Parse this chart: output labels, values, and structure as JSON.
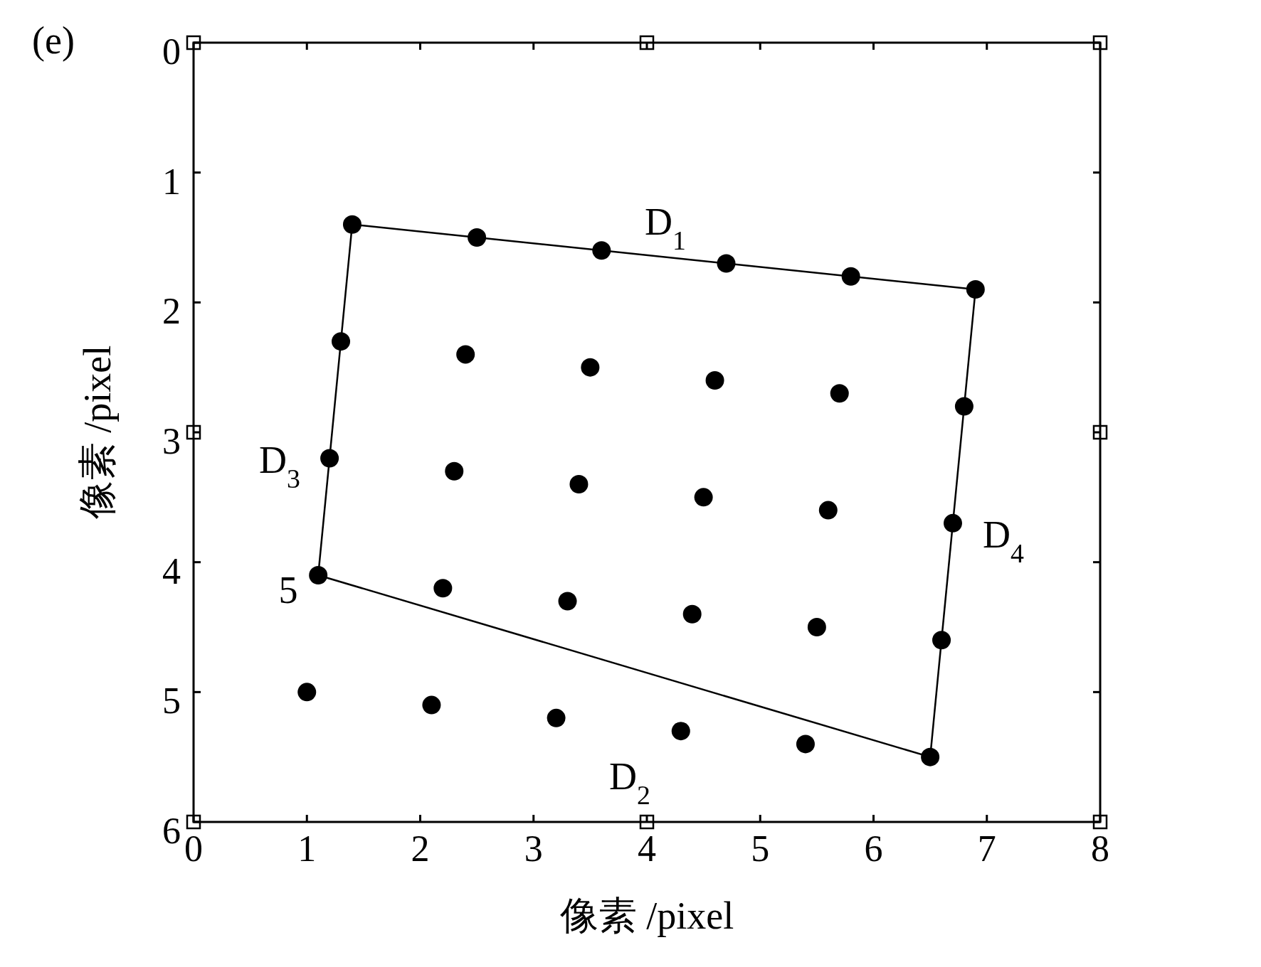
{
  "chart_data": {
    "type": "scatter",
    "xlabel": "像素 /pixel",
    "ylabel": "像素 /pixel",
    "xlim": [
      0,
      8
    ],
    "ylim": [
      6,
      0
    ],
    "xticks": [
      0,
      1,
      2,
      3,
      4,
      5,
      6,
      7,
      8
    ],
    "yticks": [
      0,
      1,
      2,
      3,
      4,
      5,
      6
    ],
    "grid": false,
    "series": [
      {
        "type": "line",
        "marker": "none",
        "line_style": "solid",
        "color": "#000000",
        "x": [
          1.4,
          6.9
        ],
        "values": [
          1.4,
          1.9
        ]
      },
      {
        "type": "line",
        "marker": "none",
        "line_style": "solid",
        "color": "#000000",
        "x": [
          6.9,
          6.5
        ],
        "values": [
          1.9,
          5.5
        ]
      },
      {
        "type": "line",
        "marker": "none",
        "line_style": "solid",
        "color": "#000000",
        "x": [
          1.1,
          6.5
        ],
        "values": [
          4.1,
          5.5
        ]
      },
      {
        "type": "line",
        "marker": "none",
        "line_style": "solid",
        "color": "#000000",
        "x": [
          1.1,
          1.4
        ],
        "values": [
          4.1,
          1.4
        ]
      },
      {
        "marker": "circle",
        "color": "#000000",
        "x": [
          1.4,
          2.5,
          3.6,
          4.7,
          5.8,
          6.9,
          1.3,
          2.4,
          3.5,
          4.6,
          5.7,
          6.8,
          1.2,
          2.3,
          3.4,
          4.5,
          5.6,
          6.7,
          1.1,
          2.2,
          3.3,
          4.4,
          5.5,
          6.6,
          1.0,
          2.1,
          3.2,
          4.3,
          5.4,
          6.5
        ],
        "values": [
          1.4,
          1.5,
          1.6,
          1.7,
          1.8,
          1.9,
          2.3,
          2.4,
          2.5,
          2.6,
          2.7,
          2.8,
          3.2,
          3.3,
          3.4,
          3.5,
          3.6,
          3.7,
          4.1,
          4.2,
          4.3,
          4.4,
          4.5,
          4.6,
          5.0,
          5.1,
          5.2,
          5.3,
          5.4,
          5.5
        ]
      },
      {
        "marker": "square",
        "color": "#000000",
        "x": [
          0,
          4,
          8,
          0,
          8,
          0,
          4,
          8
        ],
        "values": [
          0,
          0,
          0,
          3,
          3,
          6,
          6,
          6
        ]
      }
    ],
    "annotations": [
      "(e)",
      "D$_{1}$",
      "D$_{2}$",
      "D$_{3}$",
      "D$_{4}$",
      "5"
    ]
  }
}
